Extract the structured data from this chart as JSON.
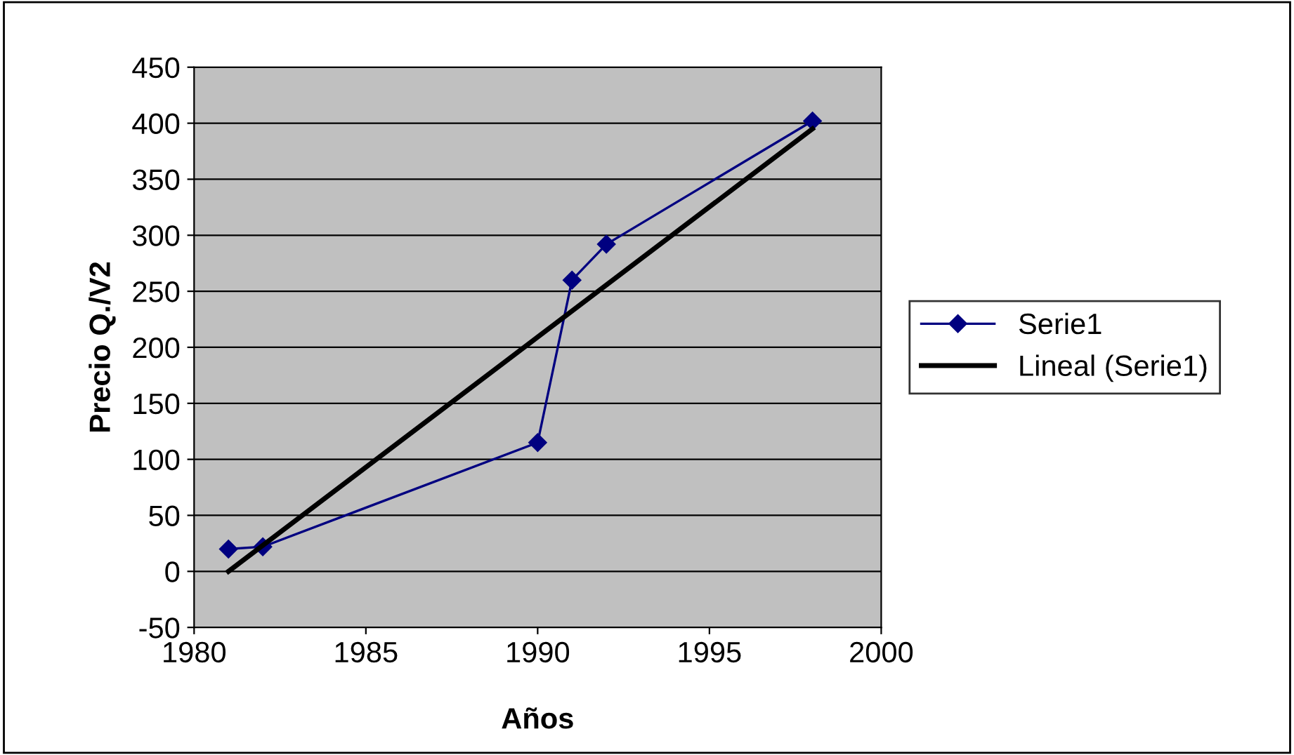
{
  "chart_data": {
    "type": "line",
    "xlabel": "Años",
    "ylabel": "Precio Q./V2",
    "series": [
      {
        "name": "Serie1",
        "color": "#000080",
        "x": [
          1981,
          1982,
          1990,
          1991,
          1992,
          1998
        ],
        "values": [
          20,
          22,
          115,
          260,
          292,
          402
        ],
        "marker": "diamond"
      },
      {
        "name": "Lineal (Serie1)",
        "color": "#000000",
        "x": [
          1981,
          1998
        ],
        "values": [
          0,
          395
        ],
        "marker": "none"
      }
    ],
    "xlim": [
      1980,
      2000
    ],
    "xticks": [
      1980,
      1985,
      1990,
      1995,
      2000
    ],
    "ylim": [
      -50,
      450
    ],
    "yticks": [
      -50,
      0,
      50,
      100,
      150,
      200,
      250,
      300,
      350,
      400,
      450
    ],
    "grid": "y",
    "legend": "right"
  }
}
